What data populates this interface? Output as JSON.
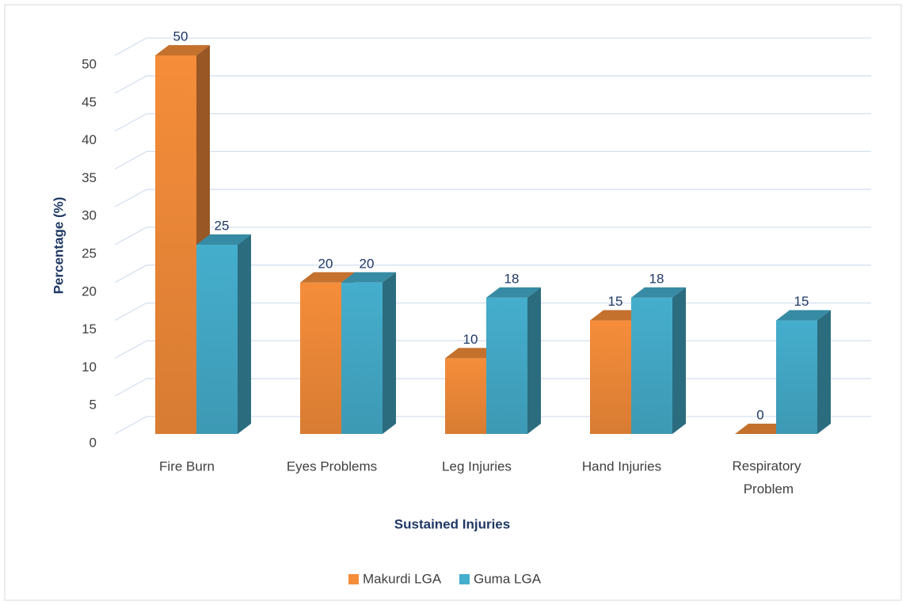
{
  "chart_data": {
    "type": "bar3d",
    "x_label": "Sustained Injuries",
    "y_label": "Percentage (%)",
    "categories": [
      "Fire Burn",
      "Eyes Problems",
      "Leg Injuries",
      "Hand Injuries",
      "Respiratory Problem"
    ],
    "series": [
      {
        "name": "Makurdi LGA",
        "color": "#f58d3a",
        "values": [
          50,
          20,
          10,
          15,
          0
        ]
      },
      {
        "name": "Guma LGA",
        "color": "#45aecd",
        "values": [
          25,
          20,
          18,
          18,
          15
        ]
      }
    ],
    "ylim": [
      0,
      50
    ],
    "yticks": [
      0,
      5,
      10,
      15,
      20,
      25,
      30,
      35,
      40,
      45,
      50
    ],
    "grid": true,
    "legend": "bottom"
  }
}
